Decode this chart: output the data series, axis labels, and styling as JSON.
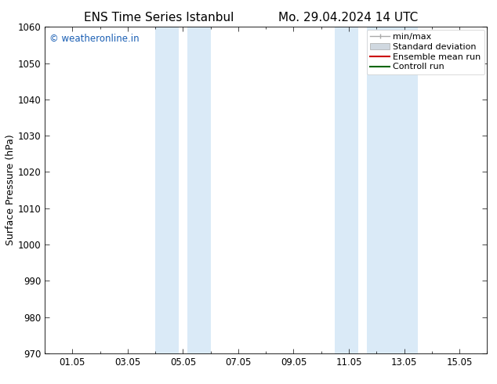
{
  "title_left": "ENS Time Series Istanbul",
  "title_right": "Mo. 29.04.2024 14 UTC",
  "ylabel": "Surface Pressure (hPa)",
  "ylim": [
    970,
    1060
  ],
  "yticks": [
    970,
    980,
    990,
    1000,
    1010,
    1020,
    1030,
    1040,
    1050,
    1060
  ],
  "xtick_labels": [
    "01.05",
    "03.05",
    "05.05",
    "07.05",
    "09.05",
    "11.05",
    "13.05",
    "15.05"
  ],
  "xtick_positions": [
    1,
    3,
    5,
    7,
    9,
    11,
    13,
    15
  ],
  "xmin": 0,
  "xmax": 16,
  "shaded_bands": [
    {
      "x_start": 4.0,
      "x_end": 4.85
    },
    {
      "x_start": 5.15,
      "x_end": 6.0
    },
    {
      "x_start": 10.5,
      "x_end": 11.35
    },
    {
      "x_start": 11.65,
      "x_end": 13.5
    }
  ],
  "shade_color": "#daeaf7",
  "watermark_text": "© weatheronline.in",
  "watermark_color": "#1a5fb4",
  "background_color": "#ffffff",
  "legend_items": [
    {
      "label": "min/max",
      "color": "#aaaaaa",
      "lw": 1.0,
      "type": "line_tick"
    },
    {
      "label": "Standard deviation",
      "color": "#d0d8e0",
      "lw": 8,
      "type": "patch"
    },
    {
      "label": "Ensemble mean run",
      "color": "#cc0000",
      "lw": 1.5,
      "type": "line"
    },
    {
      "label": "Controll run",
      "color": "#006600",
      "lw": 1.5,
      "type": "line"
    }
  ],
  "title_fontsize": 11,
  "tick_label_fontsize": 8.5,
  "ylabel_fontsize": 9,
  "watermark_fontsize": 8.5,
  "legend_fontsize": 8
}
